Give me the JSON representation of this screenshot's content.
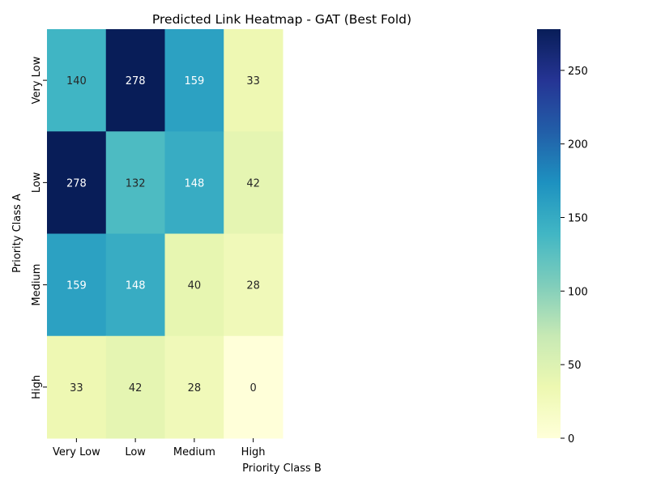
{
  "chart_data": {
    "type": "heatmap",
    "title": "Predicted Link Heatmap - GAT (Best Fold)",
    "xlabel": "Priority Class B",
    "ylabel": "Priority Class A",
    "x_categories": [
      "Very Low",
      "Low",
      "Medium",
      "High"
    ],
    "y_categories": [
      "Very Low",
      "Low",
      "Medium",
      "High"
    ],
    "values": [
      [
        140,
        278,
        159,
        33
      ],
      [
        278,
        132,
        148,
        42
      ],
      [
        159,
        148,
        40,
        28
      ],
      [
        33,
        42,
        28,
        0
      ]
    ],
    "colormap": "YlGnBu",
    "colorbar": {
      "range": [
        0,
        278
      ],
      "ticks": [
        0,
        50,
        100,
        150,
        200,
        250
      ]
    }
  }
}
